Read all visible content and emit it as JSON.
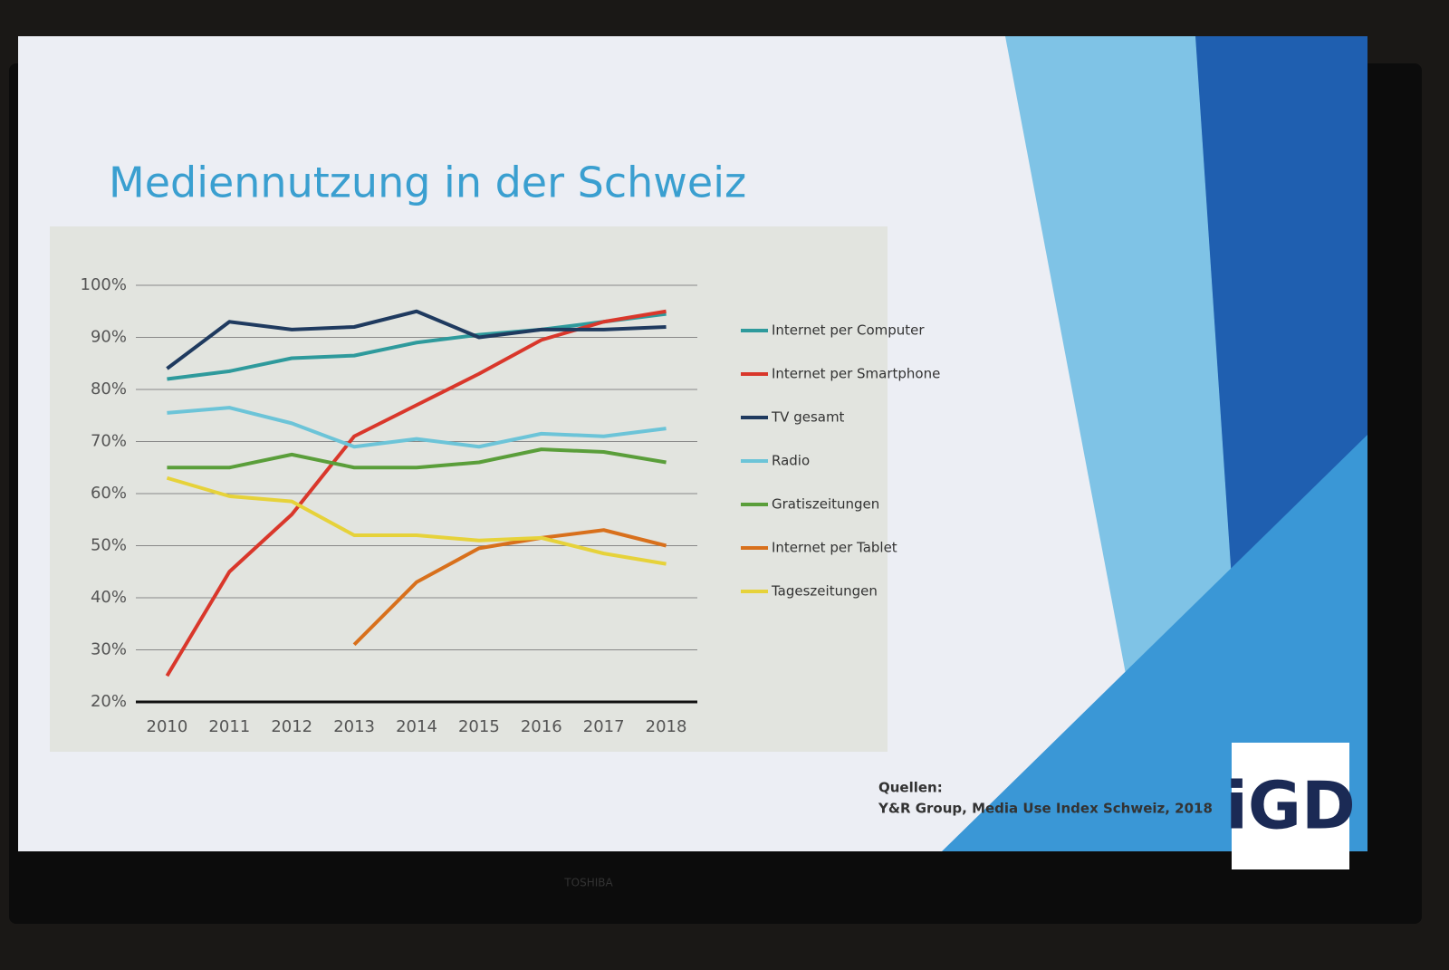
{
  "chart_data": {
    "type": "line",
    "title": "Mediennutzung in der Schweiz",
    "categories": [
      "2010",
      "2011",
      "2012",
      "2013",
      "2014",
      "2015",
      "2016",
      "2017",
      "2018"
    ],
    "series": [
      {
        "name": "Internet per Computer",
        "color": "#2e9a9c",
        "values": [
          82,
          83.5,
          86,
          86.5,
          89,
          90.5,
          91.5,
          93,
          94.5
        ]
      },
      {
        "name": "Internet per Smartphone",
        "color": "#d9372b",
        "values": [
          25,
          45,
          56,
          71,
          77,
          83,
          89.5,
          93,
          95
        ]
      },
      {
        "name": "TV gesamt",
        "color": "#1f3a5f",
        "values": [
          84,
          93,
          91.5,
          92,
          95,
          90,
          91.5,
          91.5,
          92
        ]
      },
      {
        "name": "Radio",
        "color": "#6cc4d8",
        "values": [
          75.5,
          76.5,
          73.5,
          69,
          70.5,
          69,
          71.5,
          71,
          72.5
        ]
      },
      {
        "name": "Gratiszeitungen",
        "color": "#5a9e3a",
        "values": [
          65,
          65,
          67.5,
          65,
          65,
          66,
          68.5,
          68,
          66
        ]
      },
      {
        "name": "Internet per Tablet",
        "color": "#d8701c",
        "values": [
          null,
          null,
          null,
          31,
          43,
          49.5,
          51.5,
          53,
          50
        ]
      },
      {
        "name": "Tageszeitungen",
        "color": "#e6d23a",
        "values": [
          63,
          59.5,
          58.5,
          52,
          52,
          51,
          51.5,
          48.5,
          46.5
        ]
      }
    ],
    "ylim": [
      20,
      100
    ],
    "yticks": [
      {
        "value": 20,
        "label": "20%"
      },
      {
        "value": 30,
        "label": "30%"
      },
      {
        "value": 40,
        "label": "40%"
      },
      {
        "value": 50,
        "label": "50%"
      },
      {
        "value": 60,
        "label": "60%"
      },
      {
        "value": 70,
        "label": "70%"
      },
      {
        "value": 80,
        "label": "80%"
      },
      {
        "value": 90,
        "label": "90%"
      },
      {
        "value": 100,
        "label": "100%"
      }
    ],
    "grid": true,
    "legend": "right",
    "source_heading": "Quellen:",
    "source": "Y&R Group, Media Use Index Schweiz, 2018",
    "logo": "iGD",
    "brand": "TOSHIBA"
  }
}
